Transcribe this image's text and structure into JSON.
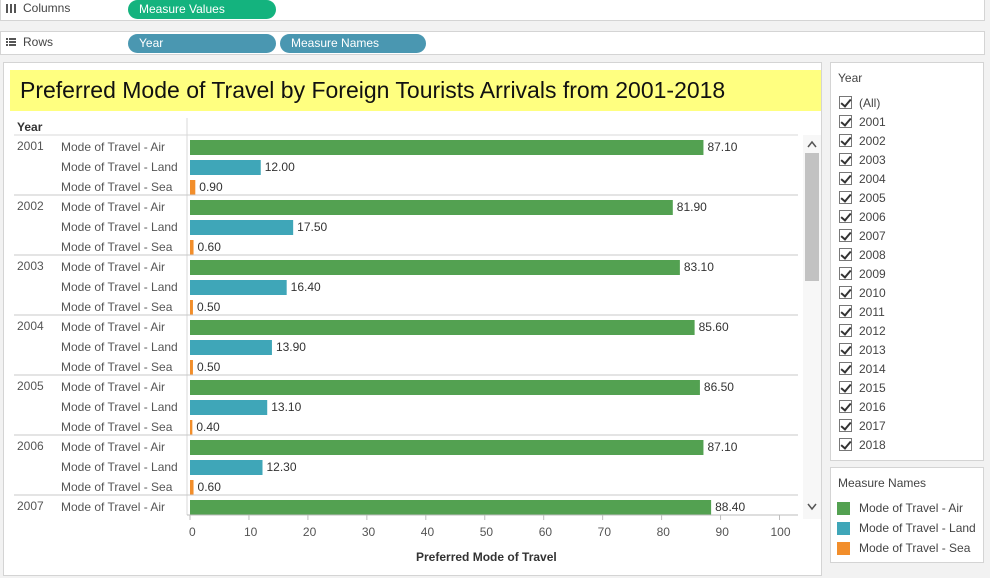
{
  "shelves": {
    "columns": {
      "label": "Columns",
      "pills": [
        "Measure Values"
      ]
    },
    "rows": {
      "label": "Rows",
      "pills": [
        "Year",
        "Measure Names"
      ]
    }
  },
  "colors": {
    "air": "#53a151",
    "land": "#3fa6b8",
    "sea": "#f28e2b",
    "pill_green": "#14b37e",
    "pill_blue": "#4a97b1",
    "title_bg": "#ffff80"
  },
  "title": "Preferred Mode of Travel by Foreign Tourists Arrivals  from 2001-2018",
  "chart_data": {
    "type": "bar",
    "orientation": "horizontal",
    "row_header": "Year",
    "xlabel": "Preferred Mode of Travel",
    "xlim": [
      0,
      100
    ],
    "x_ticks": [
      0,
      10,
      20,
      30,
      40,
      50,
      60,
      70,
      80,
      90,
      100
    ],
    "series_names": [
      "Mode of Travel - Air",
      "Mode of Travel - Land",
      "Mode of Travel - Sea"
    ],
    "rows": [
      {
        "year": "2001",
        "values": [
          87.1,
          12.0,
          0.9
        ]
      },
      {
        "year": "2002",
        "values": [
          81.9,
          17.5,
          0.6
        ]
      },
      {
        "year": "2003",
        "values": [
          83.1,
          16.4,
          0.5
        ]
      },
      {
        "year": "2004",
        "values": [
          85.6,
          13.9,
          0.5
        ]
      },
      {
        "year": "2005",
        "values": [
          86.5,
          13.1,
          0.4
        ]
      },
      {
        "year": "2006",
        "values": [
          87.1,
          12.3,
          0.6
        ]
      },
      {
        "year": "2007",
        "values": [
          88.4
        ]
      }
    ],
    "value_labels": [
      [
        "87.10",
        "12.00",
        "0.90"
      ],
      [
        "81.90",
        "17.50",
        "0.60"
      ],
      [
        "83.10",
        "16.40",
        "0.50"
      ],
      [
        "85.60",
        "13.90",
        "0.50"
      ],
      [
        "86.50",
        "13.10",
        "0.40"
      ],
      [
        "87.10",
        "12.30",
        "0.60"
      ],
      [
        "88.40"
      ]
    ],
    "grid": false
  },
  "year_filter": {
    "title": "Year",
    "items": [
      "(All)",
      "2001",
      "2002",
      "2003",
      "2004",
      "2005",
      "2006",
      "2007",
      "2008",
      "2009",
      "2010",
      "2011",
      "2012",
      "2013",
      "2014",
      "2015",
      "2016",
      "2017",
      "2018"
    ],
    "checked": true
  },
  "legend": {
    "title": "Measure Names",
    "items": [
      {
        "label": "Mode of Travel - Air",
        "color": "#53a151"
      },
      {
        "label": "Mode of Travel - Land",
        "color": "#3fa6b8"
      },
      {
        "label": "Mode of Travel - Sea",
        "color": "#f28e2b"
      }
    ]
  }
}
